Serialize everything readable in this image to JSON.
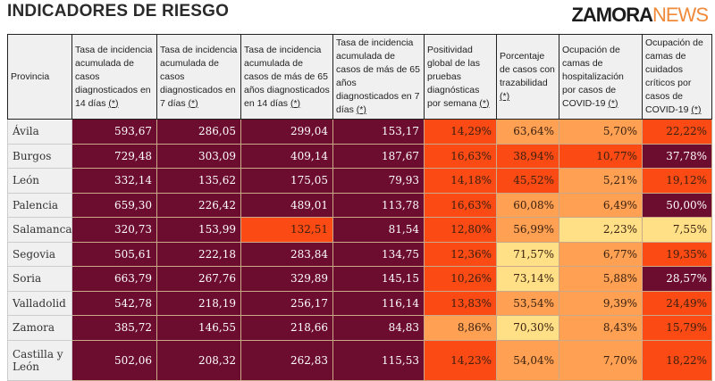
{
  "title": "INDICADORES DE RIESGO",
  "colors": {
    "maroon": "#6c0c2e",
    "red": "#fb4a14",
    "orange": "#ffa052",
    "yellow": "#ffe086"
  },
  "headers": [
    {
      "text": "Provincia",
      "ref": ""
    },
    {
      "text": "Tasa de incidencia acumulada de casos diagnosticados en 14 días ",
      "ref": "(*)"
    },
    {
      "text": "Tasa de incidencia acumulada de casos diagnosticados en 7 días ",
      "ref": "(*)"
    },
    {
      "text": "Tasa de incidencia acumulada de casos de más de 65 años diagnosticados en 14 días ",
      "ref": "(*)"
    },
    {
      "text": "Tasa de incidencia acumulada de casos de más de 65 años diagnosticados en 7 días ",
      "ref": "(*)"
    },
    {
      "text": "Positividad global de las pruebas diagnósticas por semana ",
      "ref": "(*)"
    },
    {
      "text": "Porcentaje de casos con trazabilidad ",
      "ref": "(*)"
    },
    {
      "text": "Ocupación de camas de hospitalización por casos de COVID-19 ",
      "ref": "(*)"
    },
    {
      "text": "Ocupación de camas de cuidados críticos por casos de COVID-19 ",
      "ref": "(*)"
    }
  ],
  "rows": [
    {
      "prov": "Ávila",
      "v": [
        "593,67",
        "286,05",
        "299,04",
        "153,17",
        "14,29%",
        "63,64%",
        "5,70%",
        "22,22%"
      ],
      "c": [
        "m",
        "m",
        "m",
        "m",
        "r",
        "o",
        "o",
        "r"
      ]
    },
    {
      "prov": "Burgos",
      "v": [
        "729,48",
        "303,09",
        "409,14",
        "187,67",
        "16,63%",
        "38,94%",
        "10,77%",
        "37,78%"
      ],
      "c": [
        "m",
        "m",
        "m",
        "m",
        "r",
        "r",
        "r",
        "m"
      ]
    },
    {
      "prov": "León",
      "v": [
        "332,14",
        "135,62",
        "175,05",
        "79,93",
        "14,18%",
        "45,52%",
        "5,21%",
        "19,12%"
      ],
      "c": [
        "m",
        "m",
        "m",
        "m",
        "r",
        "r",
        "o",
        "r"
      ]
    },
    {
      "prov": "Palencia",
      "v": [
        "659,30",
        "226,42",
        "489,01",
        "113,78",
        "16,63%",
        "60,08%",
        "6,49%",
        "50,00%"
      ],
      "c": [
        "m",
        "m",
        "m",
        "m",
        "r",
        "o",
        "o",
        "m"
      ]
    },
    {
      "prov": "Salamanca",
      "v": [
        "320,73",
        "153,99",
        "132,51",
        "81,54",
        "12,80%",
        "56,99%",
        "2,23%",
        "7,55%"
      ],
      "c": [
        "m",
        "m",
        "r",
        "m",
        "r",
        "o",
        "y",
        "y"
      ]
    },
    {
      "prov": "Segovia",
      "v": [
        "505,61",
        "222,18",
        "283,84",
        "134,75",
        "12,36%",
        "71,57%",
        "6,77%",
        "19,35%"
      ],
      "c": [
        "m",
        "m",
        "m",
        "m",
        "r",
        "y",
        "o",
        "r"
      ]
    },
    {
      "prov": "Soria",
      "v": [
        "663,79",
        "267,76",
        "329,89",
        "145,15",
        "10,26%",
        "73,14%",
        "5,88%",
        "28,57%"
      ],
      "c": [
        "m",
        "m",
        "m",
        "m",
        "r",
        "y",
        "o",
        "m"
      ]
    },
    {
      "prov": "Valladolid",
      "v": [
        "542,78",
        "218,19",
        "256,17",
        "116,14",
        "13,83%",
        "53,54%",
        "9,39%",
        "24,49%"
      ],
      "c": [
        "m",
        "m",
        "m",
        "m",
        "r",
        "o",
        "o",
        "r"
      ]
    },
    {
      "prov": "Zamora",
      "v": [
        "385,72",
        "146,55",
        "218,66",
        "84,83",
        "8,86%",
        "70,30%",
        "8,43%",
        "15,79%"
      ],
      "c": [
        "m",
        "m",
        "m",
        "m",
        "o",
        "y",
        "o",
        "r"
      ]
    },
    {
      "prov": "Castilla y León",
      "v": [
        "502,06",
        "208,32",
        "262,83",
        "115,53",
        "14,23%",
        "54,04%",
        "7,70%",
        "18,22%"
      ],
      "c": [
        "m",
        "m",
        "m",
        "m",
        "r",
        "o",
        "o",
        "r"
      ]
    }
  ],
  "watermark": {
    "brand": "ZAMORA",
    "suffix": "NEWS"
  }
}
